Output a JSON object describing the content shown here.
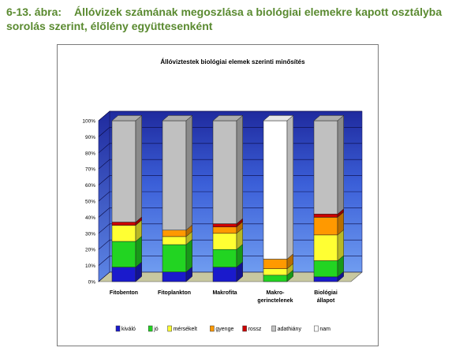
{
  "caption": {
    "number": "6-13. ábra:",
    "text": "Állóvizek számának megoszlása a biológiai elemekre kapott osztályba sorolás szerint, élőlény együttesenként"
  },
  "chart_data": {
    "type": "bar",
    "stacked": true,
    "three_d": true,
    "title": "Állóviztestek biológiai elemek szerinti minősítés",
    "categories": [
      [
        "Fitobenton"
      ],
      [
        "Fitoplankton"
      ],
      [
        "Makrofita"
      ],
      [
        "Makro-",
        "gerinctelenek"
      ],
      [
        "Biológiai",
        "állapot"
      ]
    ],
    "y_ticks": [
      "0%",
      "10%",
      "20%",
      "30%",
      "40%",
      "50%",
      "60%",
      "70%",
      "80%",
      "90%",
      "100%"
    ],
    "ylim": [
      0,
      100
    ],
    "legend_position": "bottom",
    "series": [
      {
        "name": "kiváló",
        "color": "#1a1acc",
        "values": [
          9,
          6,
          9,
          0,
          3
        ]
      },
      {
        "name": "jó",
        "color": "#22d422",
        "values": [
          16,
          17,
          11,
          4,
          10
        ]
      },
      {
        "name": "mérsékelt",
        "color": "#ffff33",
        "values": [
          10,
          5,
          10,
          4,
          16
        ]
      },
      {
        "name": "gyenge",
        "color": "#ff9900",
        "values": [
          0,
          4,
          4,
          6,
          11
        ]
      },
      {
        "name": "rossz",
        "color": "#cc0000",
        "values": [
          2,
          0,
          2,
          0,
          2
        ]
      },
      {
        "name": "adathiány",
        "color": "#c0c0c0",
        "values": [
          63,
          68,
          64,
          0,
          58
        ]
      },
      {
        "name": "nam",
        "color": "#ffffff",
        "values": [
          0,
          0,
          0,
          86,
          0
        ]
      }
    ]
  }
}
